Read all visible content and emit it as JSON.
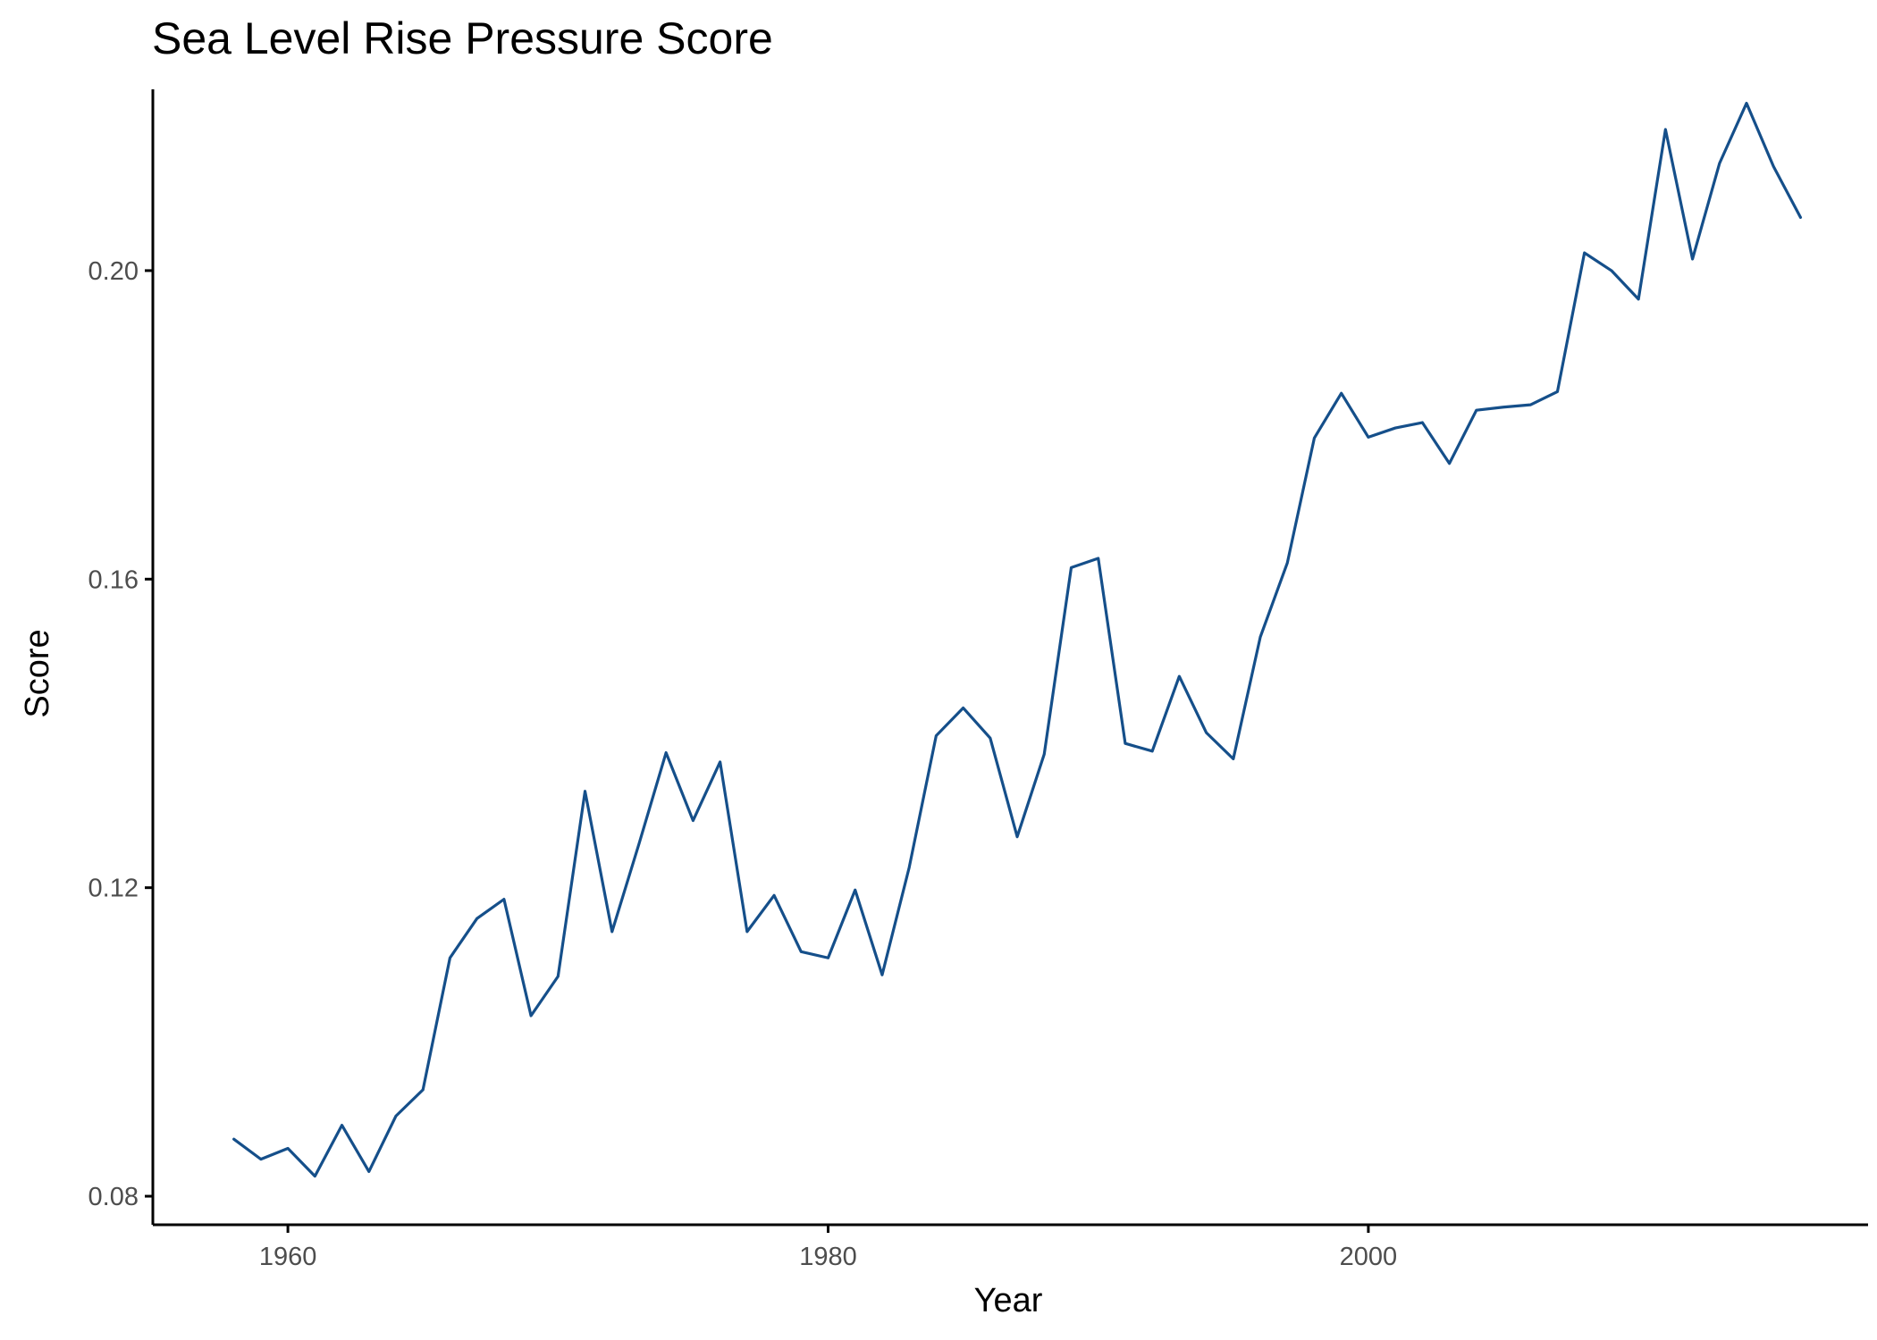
{
  "chart_data": {
    "type": "line",
    "title": "Sea Level Rise Pressure Score",
    "xlabel": "Year",
    "ylabel": "Score",
    "xlim": [
      1955,
      2018.5
    ],
    "ylim": [
      0.0763,
      0.2235
    ],
    "xticks": [
      1960,
      1980,
      2000
    ],
    "xtick_labels": [
      "1960",
      "1980",
      "2000"
    ],
    "yticks": [
      0.08,
      0.12,
      0.16,
      0.2
    ],
    "ytick_labels": [
      "0.08",
      "0.12",
      "0.16",
      "0.20"
    ],
    "grid": false,
    "colors": {
      "line": "#154f8a",
      "axis": "#000000"
    },
    "series": [
      {
        "x": [
          1958,
          1959,
          1960,
          1961,
          1962,
          1963,
          1964,
          1965,
          1966,
          1967,
          1968,
          1969,
          1970,
          1971,
          1972,
          1973,
          1974,
          1975,
          1976,
          1977,
          1978,
          1979,
          1980,
          1981,
          1982,
          1983,
          1984,
          1985,
          1986,
          1987,
          1988,
          1989,
          1990,
          1991,
          1992,
          1993,
          1994,
          1995,
          1996,
          1997,
          1998,
          1999,
          2000,
          2001,
          2002,
          2003,
          2004,
          2005,
          2006,
          2007,
          2008,
          2009,
          2010,
          2011,
          2012,
          2013,
          2014,
          2015,
          2016
        ],
        "values": [
          0.0874,
          0.0848,
          0.0862,
          0.0826,
          0.0892,
          0.0832,
          0.0904,
          0.0938,
          0.1109,
          0.116,
          0.1185,
          0.1034,
          0.1085,
          0.1325,
          0.1143,
          0.1257,
          0.1375,
          0.1287,
          0.1363,
          0.1143,
          0.119,
          0.1117,
          0.1109,
          0.1197,
          0.1087,
          0.1226,
          0.1397,
          0.1433,
          0.1394,
          0.1266,
          0.1373,
          0.1615,
          0.1627,
          0.1387,
          0.1377,
          0.1474,
          0.1401,
          0.1367,
          0.1525,
          0.1621,
          0.1783,
          0.1841,
          0.1784,
          0.1796,
          0.1803,
          0.175,
          0.1819,
          0.1823,
          0.1826,
          0.1843,
          0.2023,
          0.2,
          0.1963,
          0.2183,
          0.2015,
          0.2139,
          0.2217,
          0.2135,
          0.2069
        ]
      }
    ]
  }
}
